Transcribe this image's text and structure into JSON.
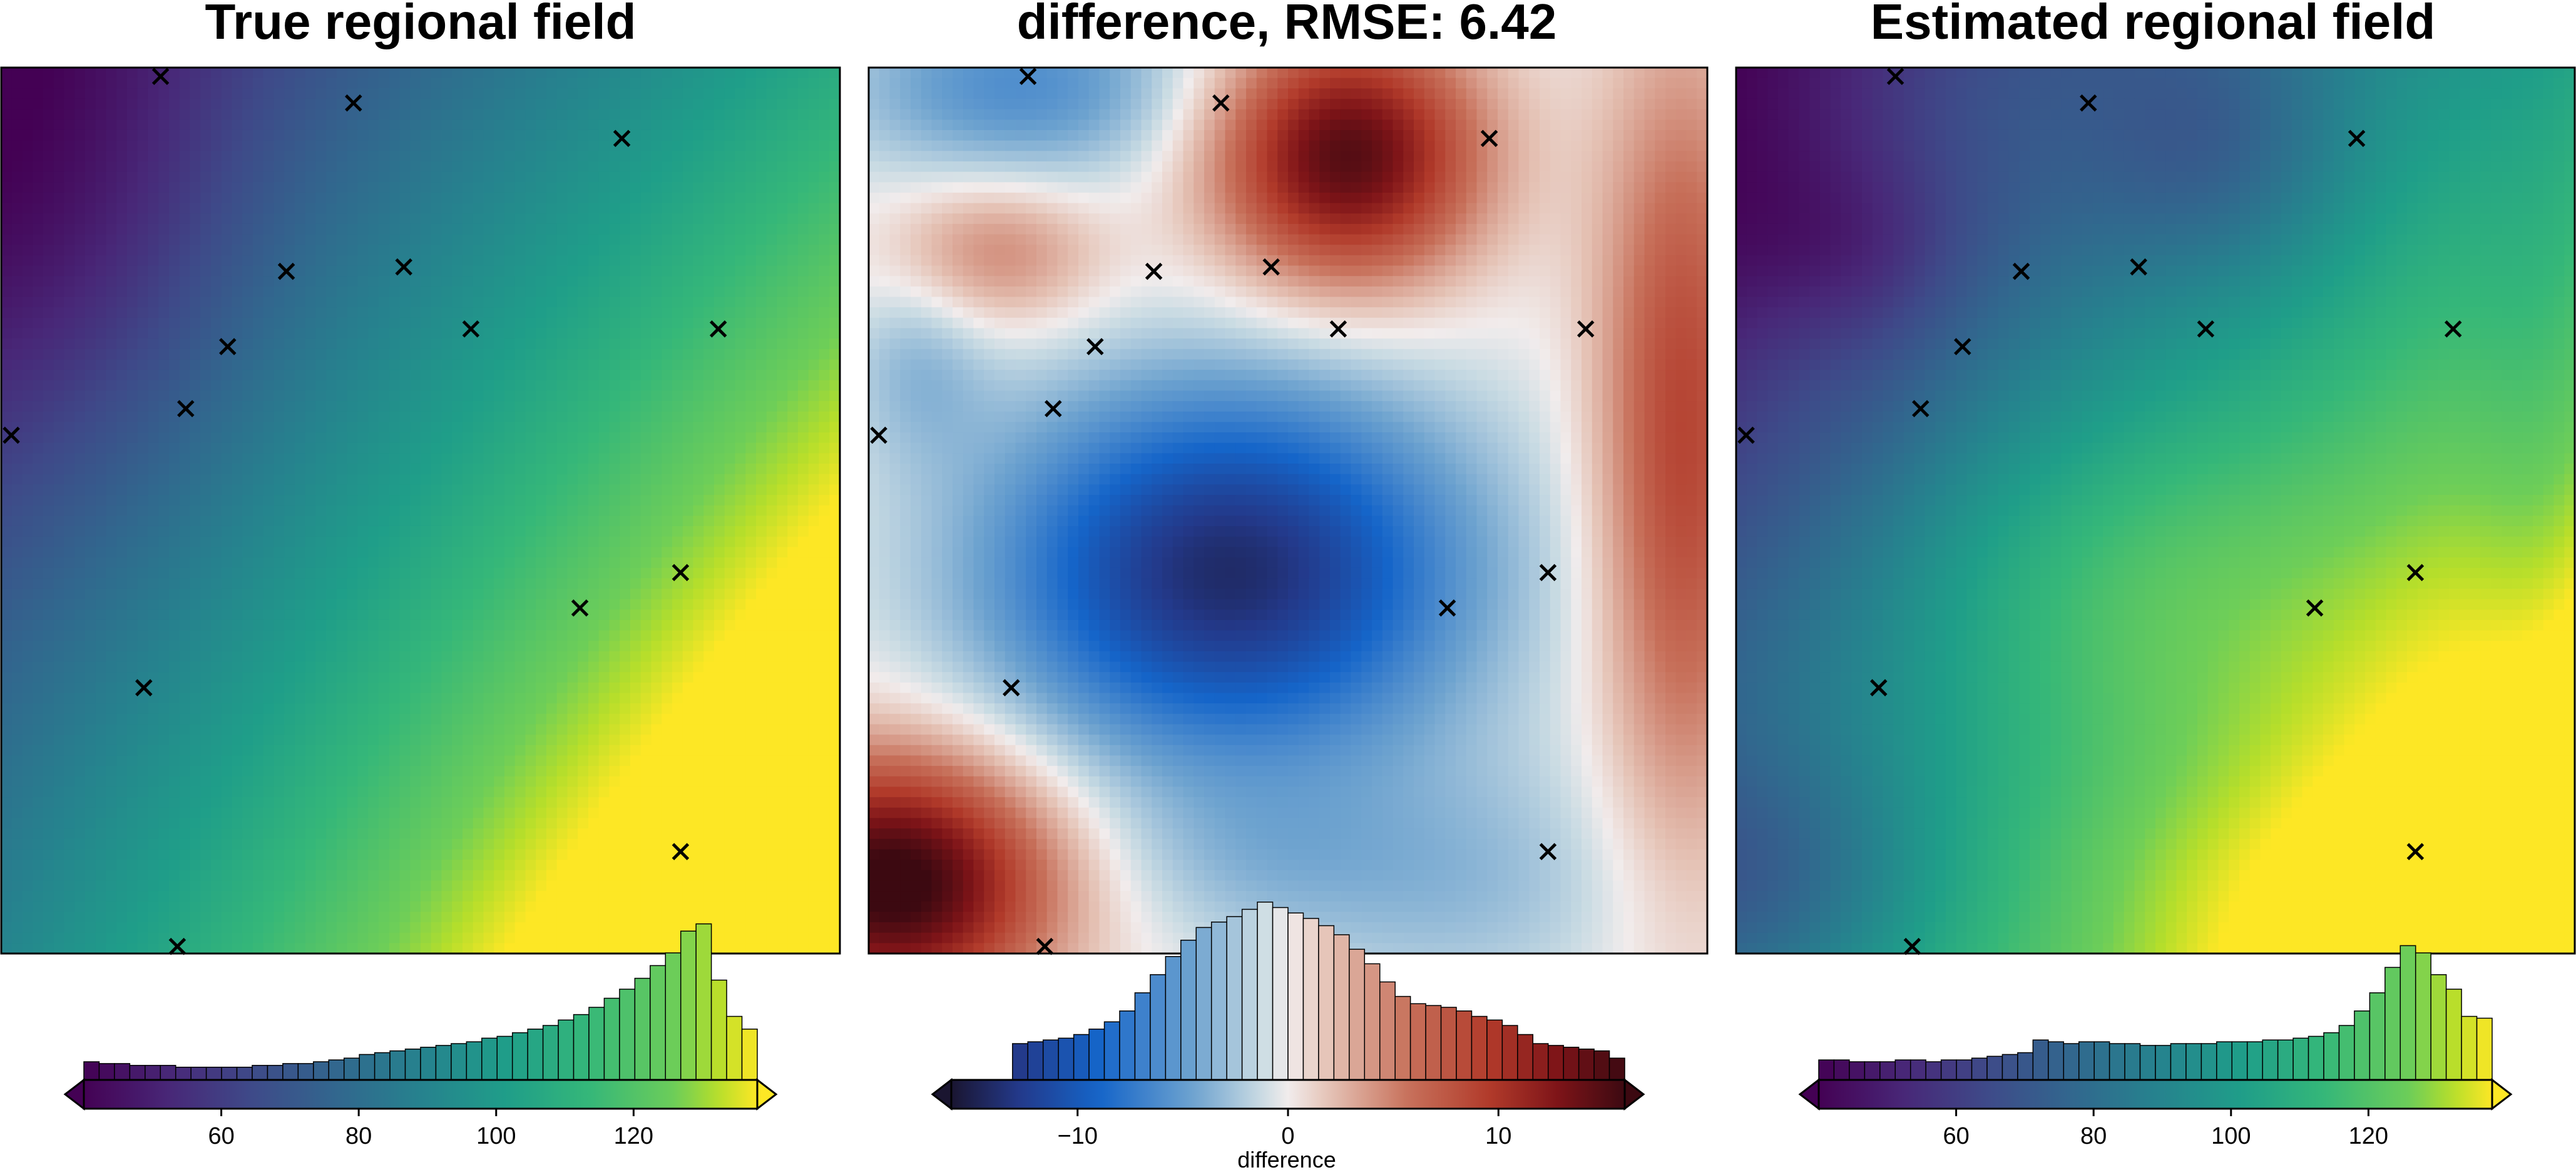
{
  "chart_data": [
    {
      "type": "heatmap",
      "title": "True regional field",
      "field": "true",
      "grid": false,
      "colormap": "viridis",
      "colorbar": {
        "range": [
          40,
          138
        ],
        "ticks": [
          60,
          80,
          100,
          120
        ],
        "tick_labels": [
          "60",
          "80",
          "100",
          "120"
        ],
        "label": "",
        "extend": "both",
        "histogram": [
          0.1,
          0.09,
          0.09,
          0.08,
          0.08,
          0.08,
          0.07,
          0.07,
          0.07,
          0.07,
          0.07,
          0.08,
          0.08,
          0.09,
          0.09,
          0.1,
          0.11,
          0.12,
          0.14,
          0.15,
          0.16,
          0.17,
          0.18,
          0.19,
          0.2,
          0.21,
          0.23,
          0.24,
          0.26,
          0.28,
          0.3,
          0.33,
          0.36,
          0.4,
          0.45,
          0.5,
          0.56,
          0.63,
          0.7,
          0.82,
          0.86,
          0.55,
          0.35,
          0.28
        ]
      },
      "markers": [
        {
          "x": 0.19,
          "y": 0.99
        },
        {
          "x": 0.42,
          "y": 0.96
        },
        {
          "x": 0.74,
          "y": 0.92
        },
        {
          "x": 0.34,
          "y": 0.77
        },
        {
          "x": 0.48,
          "y": 0.775
        },
        {
          "x": 0.27,
          "y": 0.685
        },
        {
          "x": 0.56,
          "y": 0.705
        },
        {
          "x": 0.855,
          "y": 0.705
        },
        {
          "x": 0.22,
          "y": 0.615
        },
        {
          "x": 0.012,
          "y": 0.585
        },
        {
          "x": 0.81,
          "y": 0.43
        },
        {
          "x": 0.69,
          "y": 0.39
        },
        {
          "x": 0.17,
          "y": 0.3
        },
        {
          "x": 0.81,
          "y": 0.115
        },
        {
          "x": 0.21,
          "y": 0.008
        }
      ]
    },
    {
      "type": "heatmap",
      "title": "difference, RMSE: 6.42",
      "field": "difference",
      "grid": false,
      "colormap": "balance",
      "colorbar": {
        "range": [
          -16,
          16
        ],
        "ticks": [
          -10,
          0,
          10
        ],
        "tick_labels": [
          "−10",
          "0",
          "10"
        ],
        "label": "difference",
        "extend": "both",
        "histogram": [
          0.0,
          0.0,
          0.0,
          0.0,
          0.2,
          0.21,
          0.22,
          0.23,
          0.25,
          0.28,
          0.32,
          0.38,
          0.48,
          0.58,
          0.68,
          0.77,
          0.84,
          0.87,
          0.9,
          0.94,
          0.98,
          0.95,
          0.92,
          0.89,
          0.85,
          0.8,
          0.72,
          0.64,
          0.54,
          0.46,
          0.42,
          0.41,
          0.4,
          0.38,
          0.35,
          0.33,
          0.3,
          0.25,
          0.2,
          0.19,
          0.18,
          0.17,
          0.16,
          0.12
        ]
      },
      "markers": [
        {
          "x": 0.19,
          "y": 0.99
        },
        {
          "x": 0.42,
          "y": 0.96
        },
        {
          "x": 0.74,
          "y": 0.92
        },
        {
          "x": 0.34,
          "y": 0.77
        },
        {
          "x": 0.48,
          "y": 0.775
        },
        {
          "x": 0.27,
          "y": 0.685
        },
        {
          "x": 0.56,
          "y": 0.705
        },
        {
          "x": 0.855,
          "y": 0.705
        },
        {
          "x": 0.22,
          "y": 0.615
        },
        {
          "x": 0.012,
          "y": 0.585
        },
        {
          "x": 0.81,
          "y": 0.43
        },
        {
          "x": 0.69,
          "y": 0.39
        },
        {
          "x": 0.17,
          "y": 0.3
        },
        {
          "x": 0.81,
          "y": 0.115
        },
        {
          "x": 0.21,
          "y": 0.008
        }
      ]
    },
    {
      "type": "heatmap",
      "title": "Estimated regional field",
      "field": "estimated",
      "grid": false,
      "colormap": "viridis",
      "colorbar": {
        "range": [
          40,
          138
        ],
        "ticks": [
          60,
          80,
          100,
          120
        ],
        "tick_labels": [
          "60",
          "80",
          "100",
          "120"
        ],
        "label": "",
        "extend": "both",
        "histogram": [
          0.11,
          0.11,
          0.1,
          0.1,
          0.1,
          0.11,
          0.11,
          0.1,
          0.11,
          0.11,
          0.12,
          0.13,
          0.14,
          0.15,
          0.22,
          0.21,
          0.2,
          0.21,
          0.21,
          0.2,
          0.2,
          0.19,
          0.19,
          0.2,
          0.2,
          0.2,
          0.21,
          0.21,
          0.21,
          0.22,
          0.22,
          0.23,
          0.24,
          0.26,
          0.3,
          0.38,
          0.48,
          0.62,
          0.74,
          0.7,
          0.58,
          0.5,
          0.35,
          0.34
        ]
      },
      "markers": [
        {
          "x": 0.19,
          "y": 0.99
        },
        {
          "x": 0.42,
          "y": 0.96
        },
        {
          "x": 0.74,
          "y": 0.92
        },
        {
          "x": 0.34,
          "y": 0.77
        },
        {
          "x": 0.48,
          "y": 0.775
        },
        {
          "x": 0.27,
          "y": 0.685
        },
        {
          "x": 0.56,
          "y": 0.705
        },
        {
          "x": 0.855,
          "y": 0.705
        },
        {
          "x": 0.22,
          "y": 0.615
        },
        {
          "x": 0.012,
          "y": 0.585
        },
        {
          "x": 0.81,
          "y": 0.43
        },
        {
          "x": 0.69,
          "y": 0.39
        },
        {
          "x": 0.17,
          "y": 0.3
        },
        {
          "x": 0.81,
          "y": 0.115
        },
        {
          "x": 0.21,
          "y": 0.008
        }
      ]
    }
  ]
}
